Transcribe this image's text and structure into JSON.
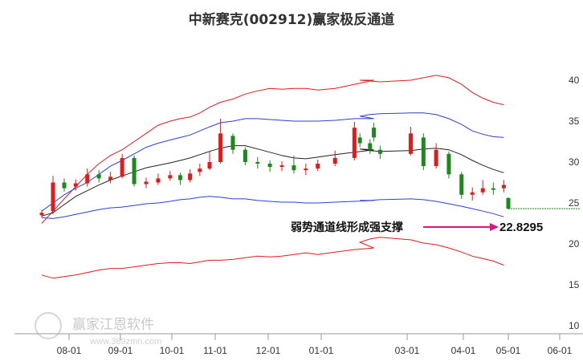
{
  "chart_data": {
    "type": "line",
    "title": "中新赛克(002912)赢家极反通道",
    "xlabel": "",
    "ylabel": "",
    "x_ticks": [
      "08-01",
      "09-01",
      "10-01",
      "11-01",
      "12-01",
      "01-01",
      "03-01",
      "04-01",
      "05-01",
      "06-01"
    ],
    "y_ticks": [
      10,
      15,
      20,
      25,
      30,
      35,
      40
    ],
    "ylim": [
      10,
      42
    ],
    "grid": false,
    "legend": "none",
    "x_dates": [
      "07-15",
      "07-22",
      "07-29",
      "08-05",
      "08-12",
      "08-19",
      "08-26",
      "09-02",
      "09-09",
      "09-16",
      "09-23",
      "09-30",
      "10-07",
      "10-14",
      "10-21",
      "10-28",
      "11-04",
      "11-11",
      "11-18",
      "11-25",
      "12-02",
      "12-09",
      "12-16",
      "12-23",
      "12-30",
      "01-06",
      "01-13",
      "01-20",
      "02-10",
      "02-17",
      "02-24",
      "03-03",
      "03-10",
      "03-17",
      "03-24",
      "03-31",
      "04-07",
      "04-14",
      "04-21",
      "04-28"
    ],
    "series": [
      {
        "style": "red-outer-upper",
        "values": [
          22.5,
          24.0,
          25.5,
          27.0,
          28.5,
          29.8,
          30.8,
          31.5,
          32.5,
          33.5,
          34.5,
          35.0,
          35.3,
          35.5,
          36.0,
          36.7,
          37.3,
          37.7,
          38.3,
          38.7,
          39.0,
          38.9,
          39.0,
          39.0,
          38.8,
          39.0,
          39.5,
          40.0,
          40.0,
          39.9,
          39.8,
          40.0,
          40.3,
          40.6,
          40.3,
          39.5,
          38.5,
          37.8,
          37.3,
          37.0
        ]
      },
      {
        "style": "blue-upper",
        "values": [
          24.0,
          25.0,
          26.0,
          26.8,
          27.5,
          28.5,
          29.5,
          30.2,
          31.0,
          31.8,
          32.3,
          32.7,
          33.0,
          33.3,
          33.8,
          34.3,
          34.8,
          35.0,
          35.3,
          35.3,
          35.2,
          35.1,
          35.0,
          35.0,
          35.0,
          35.1,
          35.3,
          35.3,
          35.6,
          35.8,
          35.9,
          36.0,
          36.0,
          35.8,
          35.3,
          34.6,
          33.8,
          33.4,
          33.1,
          33.0
        ]
      },
      {
        "style": "black-middle",
        "values": [
          23.4,
          23.8,
          24.8,
          25.8,
          26.5,
          27.2,
          27.8,
          28.3,
          28.8,
          29.3,
          29.6,
          29.9,
          30.2,
          30.5,
          30.9,
          31.3,
          31.7,
          32.0,
          32.0,
          31.6,
          31.2,
          30.8,
          30.5,
          30.4,
          30.6,
          30.9,
          31.2,
          31.5,
          31.6,
          31.4,
          31.3,
          31.4,
          31.6,
          31.7,
          31.5,
          30.9,
          30.2,
          29.6,
          29.1,
          28.7
        ]
      },
      {
        "style": "blue-lower",
        "values": [
          23.2,
          23.1,
          23.3,
          23.6,
          23.9,
          24.2,
          24.4,
          24.5,
          24.7,
          24.9,
          25.0,
          25.2,
          25.4,
          25.5,
          25.7,
          25.8,
          25.7,
          25.5,
          25.5,
          25.3,
          25.2,
          25.1,
          25.1,
          25.0,
          25.0,
          25.1,
          25.2,
          25.3,
          25.3,
          25.3,
          25.4,
          25.5,
          25.4,
          25.2,
          24.9,
          24.6,
          24.3,
          24.0,
          23.7,
          23.3
        ]
      },
      {
        "style": "red-outer-lower",
        "values": [
          16.2,
          15.8,
          16.0,
          16.2,
          16.5,
          16.8,
          17.0,
          17.0,
          17.2,
          17.4,
          17.6,
          17.7,
          17.7,
          17.6,
          17.8,
          18.0,
          18.0,
          18.1,
          18.3,
          18.5,
          18.4,
          18.5,
          18.7,
          18.9,
          18.7,
          19.0,
          19.3,
          19.5,
          20.2,
          20.6,
          20.8,
          20.5,
          20.1,
          19.9,
          19.5,
          19.0,
          18.5,
          18.2,
          17.9,
          17.4
        ]
      }
    ],
    "candles": [
      {
        "x": "07-15",
        "open": 23.5,
        "close": 23.8,
        "high": 24.1,
        "low": 23.2
      },
      {
        "x": "07-22",
        "open": 24.0,
        "close": 27.5,
        "high": 28.3,
        "low": 23.6
      },
      {
        "x": "07-29",
        "open": 27.5,
        "close": 26.8,
        "high": 28.0,
        "low": 26.4
      },
      {
        "x": "08-05",
        "open": 27.0,
        "close": 27.4,
        "high": 27.9,
        "low": 26.5
      },
      {
        "x": "08-12",
        "open": 27.4,
        "close": 28.5,
        "high": 29.2,
        "low": 27.0
      },
      {
        "x": "08-19",
        "open": 28.5,
        "close": 28.0,
        "high": 29.0,
        "low": 27.5
      },
      {
        "x": "08-26",
        "open": 27.8,
        "close": 28.2,
        "high": 28.8,
        "low": 27.4
      },
      {
        "x": "09-02",
        "open": 28.2,
        "close": 30.5,
        "high": 31.0,
        "low": 28.0
      },
      {
        "x": "09-09",
        "open": 30.5,
        "close": 27.3,
        "high": 30.8,
        "low": 27.0
      },
      {
        "x": "09-16",
        "open": 27.3,
        "close": 27.6,
        "high": 28.1,
        "low": 26.8
      },
      {
        "x": "09-23",
        "open": 27.5,
        "close": 28.0,
        "high": 28.6,
        "low": 27.2
      },
      {
        "x": "09-30",
        "open": 28.0,
        "close": 28.4,
        "high": 28.9,
        "low": 27.7
      },
      {
        "x": "10-07",
        "open": 28.4,
        "close": 27.8,
        "high": 28.7,
        "low": 27.2
      },
      {
        "x": "10-14",
        "open": 27.8,
        "close": 28.6,
        "high": 29.1,
        "low": 27.5
      },
      {
        "x": "10-21",
        "open": 28.8,
        "close": 29.2,
        "high": 29.8,
        "low": 28.3
      },
      {
        "x": "10-28",
        "open": 29.2,
        "close": 30.0,
        "high": 31.3,
        "low": 29.0
      },
      {
        "x": "11-04",
        "open": 30.0,
        "close": 33.5,
        "high": 35.3,
        "low": 29.8
      },
      {
        "x": "11-11",
        "open": 33.2,
        "close": 31.5,
        "high": 33.5,
        "low": 31.0
      },
      {
        "x": "11-18",
        "open": 31.5,
        "close": 30.0,
        "high": 31.8,
        "low": 29.6
      },
      {
        "x": "11-25",
        "open": 30.0,
        "close": 29.8,
        "high": 30.6,
        "low": 29.2
      },
      {
        "x": "12-02",
        "open": 29.8,
        "close": 29.4,
        "high": 30.2,
        "low": 28.8
      },
      {
        "x": "12-09",
        "open": 29.4,
        "close": 29.6,
        "high": 30.1,
        "low": 28.9
      },
      {
        "x": "12-16",
        "open": 29.6,
        "close": 29.0,
        "high": 30.8,
        "low": 28.6
      },
      {
        "x": "12-23",
        "open": 29.0,
        "close": 29.2,
        "high": 29.8,
        "low": 28.4
      },
      {
        "x": "12-30",
        "open": 29.2,
        "close": 29.8,
        "high": 30.3,
        "low": 28.9
      },
      {
        "x": "01-06",
        "open": 29.8,
        "close": 30.5,
        "high": 31.4,
        "low": 29.5
      },
      {
        "x": "01-13",
        "open": 30.5,
        "close": 34.2,
        "high": 34.9,
        "low": 30.2
      },
      {
        "x": "01-20",
        "open": 34.2,
        "close": 33.0,
        "high": 34.8,
        "low": 32.5
      },
      {
        "x": "02-10",
        "open": 33.0,
        "close": 32.3,
        "high": 33.5,
        "low": 31.8
      },
      {
        "x": "02-17",
        "open": 32.3,
        "close": 31.5,
        "high": 32.8,
        "low": 31.0
      },
      {
        "x": "02-24",
        "open": 31.5,
        "close": 31.0,
        "high": 32.0,
        "low": 30.4
      },
      {
        "x": "03-03",
        "open": 31.0,
        "close": 33.5,
        "high": 34.3,
        "low": 30.8
      },
      {
        "x": "03-10",
        "open": 33.0,
        "close": 29.5,
        "high": 33.5,
        "low": 29.0
      },
      {
        "x": "03-17",
        "open": 29.5,
        "close": 31.5,
        "high": 32.3,
        "low": 29.2
      },
      {
        "x": "03-24",
        "open": 31.0,
        "close": 28.5,
        "high": 31.3,
        "low": 28.0
      },
      {
        "x": "03-31",
        "open": 28.5,
        "close": 26.0,
        "high": 28.8,
        "low": 25.5
      },
      {
        "x": "04-07",
        "open": 26.0,
        "close": 26.3,
        "high": 26.9,
        "low": 25.3
      },
      {
        "x": "04-14",
        "open": 26.3,
        "close": 26.8,
        "high": 27.8,
        "low": 26.0
      },
      {
        "x": "04-21",
        "open": 26.8,
        "close": 26.6,
        "high": 27.5,
        "low": 26.0
      },
      {
        "x": "04-28",
        "open": 26.8,
        "close": 27.2,
        "high": 27.8,
        "low": 26.3
      }
    ],
    "last": {
      "x": "05-01",
      "open": 25.6,
      "close": 24.3,
      "high": 25.7,
      "low": 24.2
    },
    "annotation": {
      "text": "弱势通道线形成强支撑",
      "value": "22.8295"
    },
    "colors": {
      "outer_band": "#e11b1b",
      "inner_band": "#2b3fd8",
      "middle": "#222222",
      "up": "#e31a1a",
      "down": "#1b8a1b",
      "arrow": "#e0137a",
      "support_line": "#1b8a1b"
    }
  },
  "watermark": {
    "text": "赢家江恩软件",
    "url": "www.369zmn.com"
  }
}
